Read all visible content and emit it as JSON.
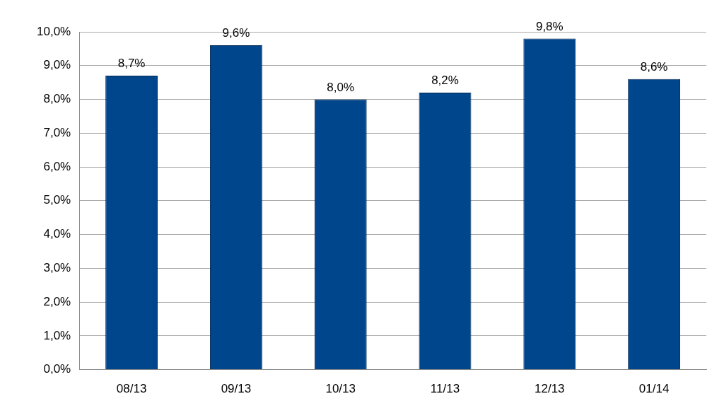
{
  "chart_data": {
    "type": "bar",
    "categories": [
      "08/13",
      "09/13",
      "10/13",
      "11/13",
      "12/13",
      "01/14"
    ],
    "values": [
      8.7,
      9.6,
      8.0,
      8.2,
      9.8,
      8.6
    ],
    "value_labels": [
      "8,7%",
      "9,6%",
      "8,0%",
      "8,2%",
      "9,8%",
      "8,6%"
    ],
    "color": "#00468c",
    "ylim": [
      0,
      10
    ],
    "yticks": [
      {
        "value": 0,
        "label": "0,0%"
      },
      {
        "value": 1,
        "label": "1,0%"
      },
      {
        "value": 2,
        "label": "2,0%"
      },
      {
        "value": 3,
        "label": "3,0%"
      },
      {
        "value": 4,
        "label": "4,0%"
      },
      {
        "value": 5,
        "label": "5,0%"
      },
      {
        "value": 6,
        "label": "6,0%"
      },
      {
        "value": 7,
        "label": "7,0%"
      },
      {
        "value": 8,
        "label": "8,0%"
      },
      {
        "value": 9,
        "label": "9,0%"
      },
      {
        "value": 10,
        "label": "10,0%"
      }
    ],
    "grid": true,
    "data_labels": true
  }
}
